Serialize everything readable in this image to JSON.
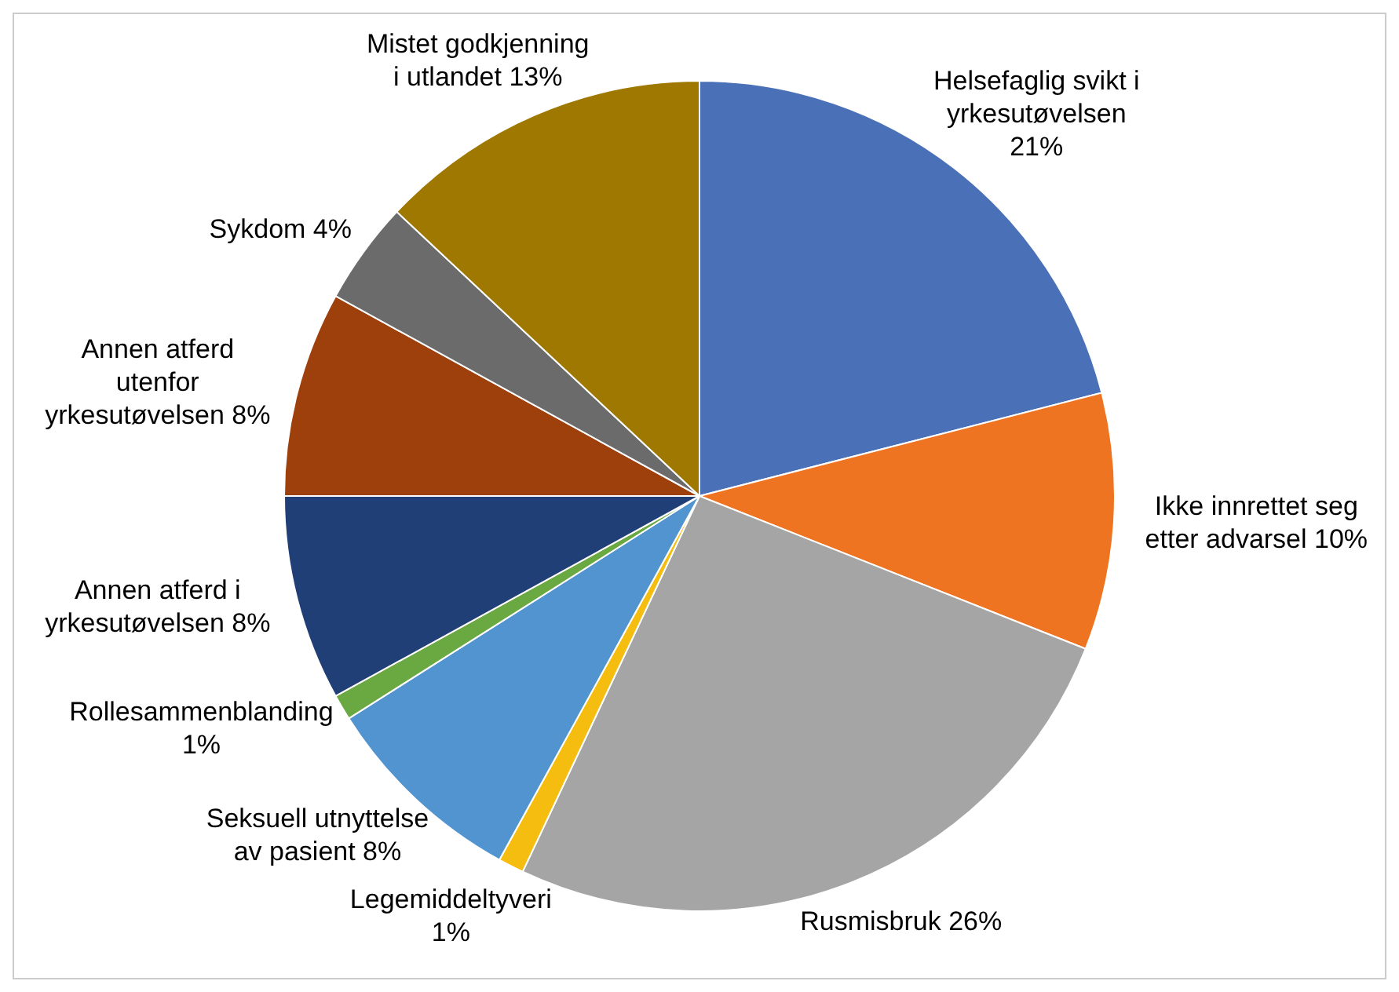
{
  "chart_data": {
    "type": "pie",
    "categories": [
      "Helsefaglig svikt i yrkesutøvelsen",
      "Ikke innrettet seg etter advarsel",
      "Rusmisbruk",
      "Legemiddeltyveri",
      "Seksuell utnyttelse av pasient",
      "Rollesammenblanding",
      "Annen atferd i yrkesutøvelsen",
      "Annen atferd utenfor yrkesutøvelsen",
      "Sykdom",
      "Mistet godkjenning i utlandet"
    ],
    "values": [
      21,
      10,
      26,
      1,
      8,
      1,
      8,
      8,
      4,
      13
    ],
    "value_labels": [
      "21%",
      "10%",
      "26%",
      "1%",
      "8%",
      "1%",
      "8%",
      "8%",
      "4%",
      "13%"
    ],
    "colors": [
      "#4a70b8",
      "#ef7422",
      "#a5a5a5",
      "#f5bd10",
      "#5294cf",
      "#6aa842",
      "#213f77",
      "#9e400c",
      "#6b6b6b",
      "#9e7800"
    ],
    "legend": false
  }
}
